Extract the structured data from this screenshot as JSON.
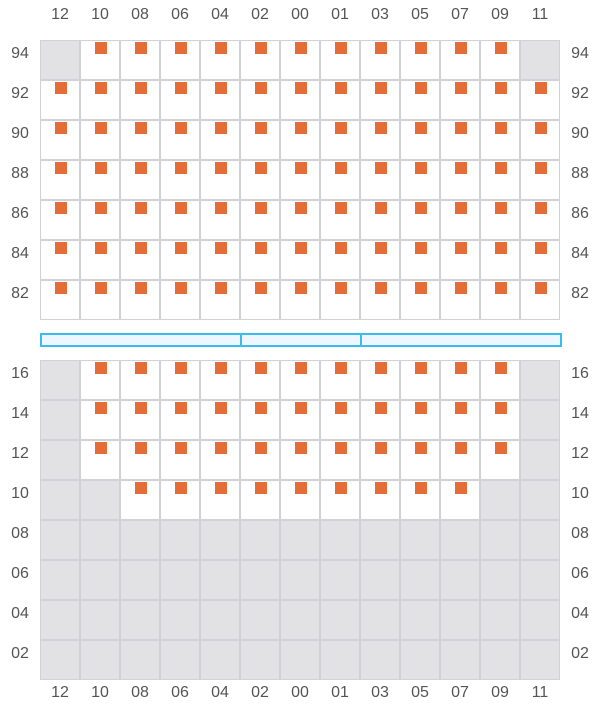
{
  "columns": [
    "12",
    "10",
    "08",
    "06",
    "04",
    "02",
    "00",
    "01",
    "03",
    "05",
    "07",
    "09",
    "11"
  ],
  "colors": {
    "seat": "#e46c36",
    "blocked": "#e2e2e4",
    "grid": "#d2d2d6",
    "bar_border": "#3bbcf0",
    "bar_fill": "#eef7ff"
  },
  "sections": [
    {
      "rows": [
        {
          "label": "94",
          "cells": [
            "blocked",
            "seat",
            "seat",
            "seat",
            "seat",
            "seat",
            "seat",
            "seat",
            "seat",
            "seat",
            "seat",
            "seat",
            "blocked"
          ]
        },
        {
          "label": "92",
          "cells": [
            "seat",
            "seat",
            "seat",
            "seat",
            "seat",
            "seat",
            "seat",
            "seat",
            "seat",
            "seat",
            "seat",
            "seat",
            "seat"
          ]
        },
        {
          "label": "90",
          "cells": [
            "seat",
            "seat",
            "seat",
            "seat",
            "seat",
            "seat",
            "seat",
            "seat",
            "seat",
            "seat",
            "seat",
            "seat",
            "seat"
          ]
        },
        {
          "label": "88",
          "cells": [
            "seat",
            "seat",
            "seat",
            "seat",
            "seat",
            "seat",
            "seat",
            "seat",
            "seat",
            "seat",
            "seat",
            "seat",
            "seat"
          ]
        },
        {
          "label": "86",
          "cells": [
            "seat",
            "seat",
            "seat",
            "seat",
            "seat",
            "seat",
            "seat",
            "seat",
            "seat",
            "seat",
            "seat",
            "seat",
            "seat"
          ]
        },
        {
          "label": "84",
          "cells": [
            "seat",
            "seat",
            "seat",
            "seat",
            "seat",
            "seat",
            "seat",
            "seat",
            "seat",
            "seat",
            "seat",
            "seat",
            "seat"
          ]
        },
        {
          "label": "82",
          "cells": [
            "seat",
            "seat",
            "seat",
            "seat",
            "seat",
            "seat",
            "seat",
            "seat",
            "seat",
            "seat",
            "seat",
            "seat",
            "seat"
          ]
        }
      ]
    },
    {
      "rows": [
        {
          "label": "16",
          "cells": [
            "blocked",
            "seat",
            "seat",
            "seat",
            "seat",
            "seat",
            "seat",
            "seat",
            "seat",
            "seat",
            "seat",
            "seat",
            "blocked"
          ]
        },
        {
          "label": "14",
          "cells": [
            "blocked",
            "seat",
            "seat",
            "seat",
            "seat",
            "seat",
            "seat",
            "seat",
            "seat",
            "seat",
            "seat",
            "seat",
            "blocked"
          ]
        },
        {
          "label": "12",
          "cells": [
            "blocked",
            "seat",
            "seat",
            "seat",
            "seat",
            "seat",
            "seat",
            "seat",
            "seat",
            "seat",
            "seat",
            "seat",
            "blocked"
          ]
        },
        {
          "label": "10",
          "cells": [
            "blocked",
            "blocked",
            "seat",
            "seat",
            "seat",
            "seat",
            "seat",
            "seat",
            "seat",
            "seat",
            "seat",
            "blocked",
            "blocked"
          ]
        },
        {
          "label": "08",
          "cells": [
            "blocked",
            "blocked",
            "blocked",
            "blocked",
            "blocked",
            "blocked",
            "blocked",
            "blocked",
            "blocked",
            "blocked",
            "blocked",
            "blocked",
            "blocked"
          ]
        },
        {
          "label": "06",
          "cells": [
            "blocked",
            "blocked",
            "blocked",
            "blocked",
            "blocked",
            "blocked",
            "blocked",
            "blocked",
            "blocked",
            "blocked",
            "blocked",
            "blocked",
            "blocked"
          ]
        },
        {
          "label": "04",
          "cells": [
            "blocked",
            "blocked",
            "blocked",
            "blocked",
            "blocked",
            "blocked",
            "blocked",
            "blocked",
            "blocked",
            "blocked",
            "blocked",
            "blocked",
            "blocked"
          ]
        },
        {
          "label": "02",
          "cells": [
            "blocked",
            "blocked",
            "blocked",
            "blocked",
            "blocked",
            "blocked",
            "blocked",
            "blocked",
            "blocked",
            "blocked",
            "blocked",
            "blocked",
            "blocked"
          ]
        }
      ]
    }
  ],
  "divider_segments": 3
}
